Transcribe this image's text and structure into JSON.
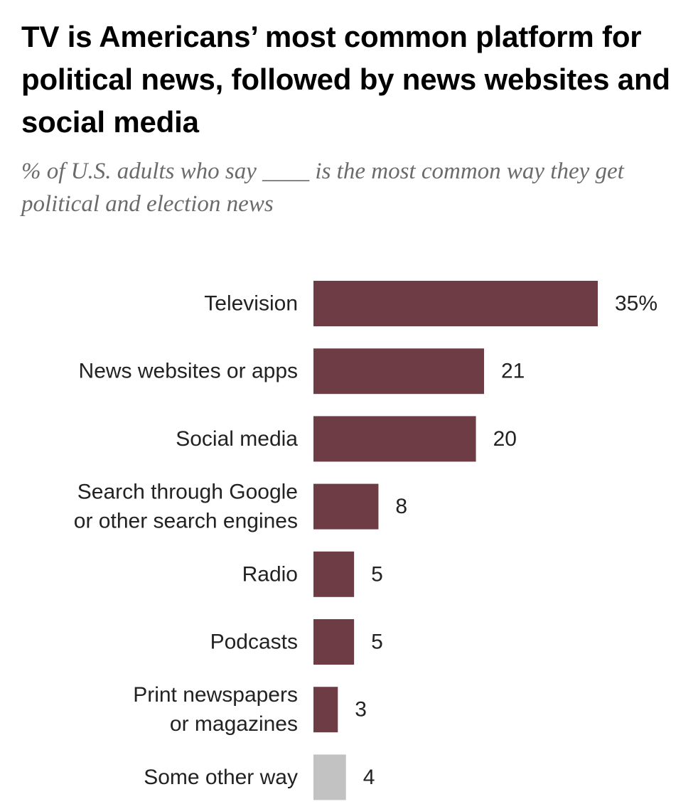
{
  "header": {
    "title": "TV is Americans’ most common platform for political news, followed by news websites and social media",
    "subtitle": "% of U.S. adults who say ____ is the most common way they get political and election news"
  },
  "chart_data": {
    "type": "bar",
    "orientation": "horizontal",
    "title": "TV is Americans’ most common platform for political news, followed by news websites and social media",
    "subtitle": "% of U.S. adults who say ____ is the most common way they get political and election news",
    "categories": [
      "Television",
      "News websites or apps",
      "Social media",
      "Search through Google or other search engines",
      "Radio",
      "Podcasts",
      "Print newspapers or magazines",
      "Some other way"
    ],
    "category_lines": [
      [
        "Television"
      ],
      [
        "News websites or apps"
      ],
      [
        "Social media"
      ],
      [
        "Search through Google",
        "or other search engines"
      ],
      [
        "Radio"
      ],
      [
        "Podcasts"
      ],
      [
        "Print newspapers",
        "or magazines"
      ],
      [
        "Some other way"
      ]
    ],
    "values": [
      35,
      21,
      20,
      8,
      5,
      5,
      3,
      4
    ],
    "value_labels": [
      "35%",
      "21",
      "20",
      "8",
      "5",
      "5",
      "3",
      "4"
    ],
    "bar_colors": [
      "#6e3c45",
      "#6e3c45",
      "#6e3c45",
      "#6e3c45",
      "#6e3c45",
      "#6e3c45",
      "#6e3c45",
      "#c2c2c2"
    ],
    "unit": "%",
    "grid": false,
    "legend": "none",
    "xlabel": "",
    "ylabel": ""
  }
}
